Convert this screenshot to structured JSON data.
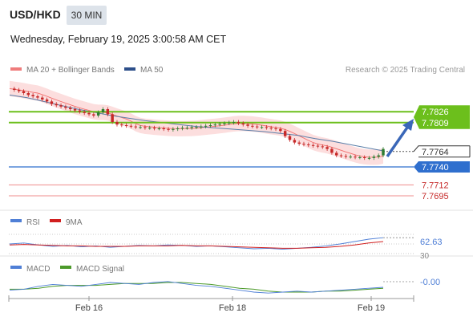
{
  "header": {
    "symbol": "USD/HKD",
    "timeframe": "30 MIN",
    "datetime": "Wednesday, February 19, 2025 3:00:58 AM CET"
  },
  "legend": {
    "ma20": "MA 20 + Bollinger Bands",
    "ma50": "MA 50",
    "credit": "Research © 2025 Trading Central"
  },
  "colors": {
    "up": "#2e7d32",
    "down": "#c62828",
    "ma20": "#ef5350",
    "band": "#fcdede",
    "ma50": "#5a7ea8",
    "resistance": "#6cbf1c",
    "pivot": "#2f6fce",
    "support": "#ef8d8d",
    "rsi": "#4f7fd6",
    "rsi_ma": "#d11f1f",
    "macd": "#4f7fd6",
    "macd_signal": "#4c9a2a"
  },
  "chart_data": [
    {
      "type": "candlestick",
      "title": "USD/HKD 30 MIN",
      "x_ticks": [
        "Feb 16",
        "Feb 18",
        "Feb 19"
      ],
      "ylim": [
        7.768,
        7.788
      ],
      "close_series": [
        7.7862,
        7.786,
        7.7858,
        7.7855,
        7.7852,
        7.785,
        7.7848,
        7.7845,
        7.7842,
        7.7838,
        7.7836,
        7.7834,
        7.7832,
        7.783,
        7.7828,
        7.7826,
        7.7824,
        7.7822,
        7.782,
        7.7825,
        7.783,
        7.7822,
        7.781,
        7.7806,
        7.7805,
        7.7804,
        7.7803,
        7.7802,
        7.7802,
        7.7801,
        7.7801,
        7.78,
        7.78,
        7.7799,
        7.7798,
        7.7799,
        7.78,
        7.7801,
        7.7801,
        7.7802,
        7.7802,
        7.7803,
        7.7804,
        7.7805,
        7.7806,
        7.7807,
        7.7808,
        7.7809,
        7.781,
        7.7808,
        7.7806,
        7.7804,
        7.7803,
        7.7802,
        7.7802,
        7.7801,
        7.78,
        7.7799,
        7.7796,
        7.7788,
        7.7782,
        7.7778,
        7.7776,
        7.7775,
        7.7774,
        7.7773,
        7.7772,
        7.7771,
        7.7768,
        7.7762,
        7.7758,
        7.7757,
        7.7756,
        7.7756,
        7.7755,
        7.7755,
        7.7754,
        7.7754,
        7.7756,
        7.7758,
        7.7768
      ],
      "ma50_series": [
        7.7852,
        7.7848,
        7.7842,
        7.7836,
        7.783,
        7.7825,
        7.782,
        7.7816,
        7.7812,
        7.7809,
        7.7806,
        7.7803,
        7.7801,
        7.7799,
        7.7797,
        7.7795,
        7.7792,
        7.7789,
        7.7784,
        7.778,
        7.7775,
        7.777,
        7.7765
      ],
      "levels": {
        "resistance": [
          7.7826,
          7.7809
        ],
        "last": 7.7764,
        "pivot": 7.774,
        "support": [
          7.7712,
          7.7695
        ]
      }
    },
    {
      "type": "line",
      "title": "RSI",
      "series": [
        {
          "name": "RSI",
          "values": [
            50,
            52,
            48,
            45,
            47,
            44,
            46,
            43,
            45,
            47,
            46,
            48,
            47,
            45,
            46,
            44,
            42,
            40,
            41,
            39,
            41,
            43,
            46,
            50,
            55,
            60,
            63
          ]
        },
        {
          "name": "9MA",
          "values": [
            48,
            49,
            48,
            47,
            46,
            46,
            45,
            45,
            45,
            46,
            46,
            46,
            47,
            46,
            46,
            45,
            44,
            43,
            42,
            41,
            41,
            42,
            43,
            45,
            48,
            52,
            55
          ]
        }
      ],
      "value_label": "62.63",
      "levels": [
        "70",
        "50",
        "30"
      ]
    },
    {
      "type": "line",
      "title": "MACD",
      "series": [
        {
          "name": "MACD",
          "values": [
            -0.3,
            -0.2,
            0.1,
            0.3,
            0.2,
            0.1,
            0.3,
            0.5,
            0.4,
            0.3,
            0.5,
            0.6,
            0.4,
            0.2,
            0.1,
            -0.1,
            -0.3,
            -0.5,
            -0.6,
            -0.5,
            -0.4,
            -0.5,
            -0.4,
            -0.3,
            -0.2,
            -0.1,
            0.0
          ]
        },
        {
          "name": "MACD Signal",
          "values": [
            -0.2,
            -0.2,
            -0.1,
            0.1,
            0.2,
            0.2,
            0.2,
            0.3,
            0.4,
            0.4,
            0.4,
            0.5,
            0.5,
            0.4,
            0.3,
            0.1,
            -0.1,
            -0.2,
            -0.4,
            -0.5,
            -0.5,
            -0.5,
            -0.4,
            -0.4,
            -0.3,
            -0.2,
            -0.1
          ]
        }
      ],
      "value_label": "-0.00"
    }
  ]
}
